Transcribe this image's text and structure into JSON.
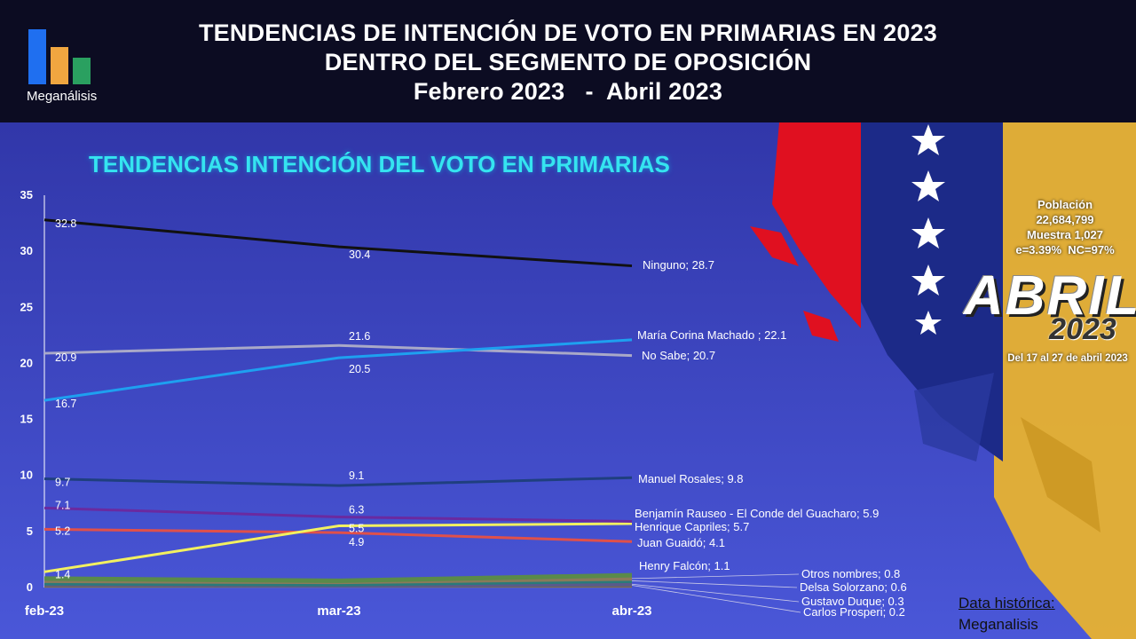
{
  "header": {
    "logo_label": "Meganálisis",
    "title_line1": "TENDENCIAS DE INTENCIÓN DE VOTO EN PRIMARIAS EN 2023",
    "title_line2": "DENTRO DEL SEGMENTO DE OPOSICIÓN",
    "title_line3": "Febrero 2023   -  Abril 2023"
  },
  "info": {
    "population_label": "Población",
    "population_value": "22,684,799",
    "sample": "Muestra 1,027",
    "error": "e=3.39%  NC=97%",
    "month_big": "ABRIL",
    "year_big": "2023",
    "dates": "Del 17 al 27 de abril 2023"
  },
  "footer": {
    "historic_label": "Data histórica:",
    "historic_source": "Meganalisis"
  },
  "colors": {
    "header_bg": "#0c0c22",
    "chart_title": "#35e4f0",
    "logo_blue": "#1f6ff0",
    "logo_orange": "#f0a640",
    "logo_green": "#2aa060"
  },
  "chart_data": {
    "type": "line",
    "title": "TENDENCIAS INTENCIÓN DEL VOTO EN PRIMARIAS",
    "categories": [
      "feb-23",
      "mar-23",
      "abr-23"
    ],
    "ylim": [
      0,
      35
    ],
    "yticks": [
      0,
      5,
      10,
      15,
      20,
      25,
      30,
      35
    ],
    "grid": false,
    "legend": "end-of-line labels",
    "series": [
      {
        "name": "Ninguno",
        "values": [
          32.8,
          30.4,
          28.7
        ],
        "color": "#111111",
        "end_label": "Ninguno; 28.7",
        "point_labels": [
          "32.8",
          "30.4",
          ""
        ]
      },
      {
        "name": "María Corina Machado ",
        "values": [
          16.7,
          20.5,
          22.1
        ],
        "color": "#1ea0f0",
        "end_label": "María Corina Machado ; 22.1",
        "point_labels": [
          "16.7",
          "20.5",
          ""
        ]
      },
      {
        "name": "No Sabe",
        "values": [
          20.9,
          21.6,
          20.7
        ],
        "color": "#a9a9c8",
        "end_label": "No Sabe; 20.7",
        "point_labels": [
          "20.9",
          "21.6",
          ""
        ]
      },
      {
        "name": "Manuel Rosales",
        "values": [
          9.7,
          9.1,
          9.8
        ],
        "color": "#1f3f7f",
        "end_label": "Manuel Rosales; 9.8",
        "point_labels": [
          "9.7",
          "9.1",
          ""
        ]
      },
      {
        "name": "Benjamín Rauseo - El Conde del Guacharo",
        "values": [
          7.1,
          6.3,
          5.9
        ],
        "color": "#6a2aa0",
        "end_label": "Benjamín Rauseo - El Conde del Guacharo; 5.9",
        "point_labels": [
          "7.1",
          "6.3",
          ""
        ]
      },
      {
        "name": "Henrique Capriles",
        "values": [
          1.4,
          5.5,
          5.7
        ],
        "color": "#f2f060",
        "end_label": "Henrique Capriles; 5.7",
        "point_labels": [
          "1.4",
          "5.5",
          ""
        ]
      },
      {
        "name": "Juan Guaidó",
        "values": [
          5.2,
          4.9,
          4.1
        ],
        "color": "#e0504a",
        "end_label": "Juan Guaidó; 4.1",
        "point_labels": [
          "5.2",
          "4.9",
          ""
        ]
      },
      {
        "name": "Henry Falcón",
        "values": [
          0.8,
          0.6,
          1.1
        ],
        "color": "#5a8a4a",
        "end_label": "Henry Falcón; 1.1",
        "point_labels": [
          "",
          "",
          ""
        ]
      },
      {
        "name": "Otros nombres",
        "values": [
          0.6,
          0.5,
          0.8
        ],
        "color": "#8a7a5a",
        "end_label": "Otros nombres; 0.8",
        "point_labels": [
          "",
          "",
          ""
        ]
      },
      {
        "name": "Delsa Solorzano",
        "values": [
          0.4,
          0.3,
          0.6
        ],
        "color": "#2a7a7a",
        "end_label": "Delsa Solorzano; 0.6",
        "point_labels": [
          "",
          "",
          ""
        ]
      },
      {
        "name": "Gustavo Duque",
        "values": [
          0.3,
          0.2,
          0.3
        ],
        "color": "#5a5a8a",
        "end_label": "Gustavo Duque; 0.3",
        "point_labels": [
          "",
          "",
          ""
        ]
      },
      {
        "name": "Carlos Prosperi",
        "values": [
          0.2,
          0.2,
          0.2
        ],
        "color": "#7a6a4a",
        "end_label": "Carlos Prosperi; 0.2",
        "point_labels": [
          "",
          "",
          ""
        ]
      }
    ]
  }
}
